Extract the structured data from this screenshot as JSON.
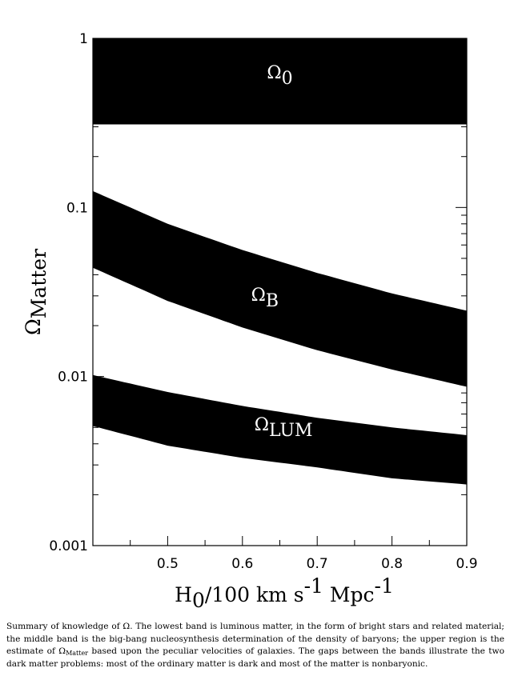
{
  "chart_data": {
    "type": "area",
    "title": "",
    "xlabel": {
      "main": "H",
      "sub": "0",
      "rest": "/100 km s",
      "sup1": "-1",
      "mid": " Mpc",
      "sup2": "-1"
    },
    "ylabel": {
      "main": "Ω",
      "sub": "Matter"
    },
    "xlim": [
      0.4,
      0.9
    ],
    "ylim": [
      0.001,
      1
    ],
    "yscale": "log",
    "grid": false,
    "x_ticks": [
      {
        "value": 0.5,
        "label": "0.5"
      },
      {
        "value": 0.6,
        "label": "0.6"
      },
      {
        "value": 0.7,
        "label": "0.7"
      },
      {
        "value": 0.8,
        "label": "0.8"
      },
      {
        "value": 0.9,
        "label": "0.9"
      }
    ],
    "y_ticks": [
      {
        "value": 0.001,
        "label": "0.001"
      },
      {
        "value": 0.01,
        "label": "0.01"
      },
      {
        "value": 0.1,
        "label": "0.1"
      },
      {
        "value": 1,
        "label": "1"
      }
    ],
    "bands": [
      {
        "id": "omega-0",
        "label": "Ω",
        "label_sub": "0",
        "label_at": {
          "x": 0.65,
          "y": 0.58
        },
        "x": [
          0.4,
          0.9
        ],
        "lower": [
          0.31,
          0.31
        ],
        "upper": [
          1.0,
          1.0
        ]
      },
      {
        "id": "omega-b",
        "label": "Ω",
        "label_sub": "B",
        "label_at": {
          "x": 0.63,
          "y": 0.028
        },
        "x": [
          0.4,
          0.5,
          0.6,
          0.7,
          0.8,
          0.9
        ],
        "lower": [
          0.044,
          0.028,
          0.0195,
          0.0143,
          0.011,
          0.0087
        ],
        "upper": [
          0.125,
          0.08,
          0.056,
          0.041,
          0.031,
          0.0245
        ]
      },
      {
        "id": "omega-lum",
        "label": "Ω",
        "label_sub": "LUM",
        "label_at": {
          "x": 0.655,
          "y": 0.0048
        },
        "x": [
          0.4,
          0.5,
          0.6,
          0.7,
          0.8,
          0.9
        ],
        "lower": [
          0.0051,
          0.0039,
          0.0033,
          0.0029,
          0.0025,
          0.0023
        ],
        "upper": [
          0.0102,
          0.0081,
          0.0067,
          0.0057,
          0.005,
          0.0045
        ]
      }
    ]
  },
  "caption": {
    "p1": "Summary of knowledge of Ω.  The lowest band is luminous matter, in the form of bright stars and related material; the middle band is the big-bang nucleosynthesis determination of the density of baryons; the upper region is the estimate of Ω",
    "p1_sub": "Matter",
    "p2": " based upon the peculiar velocities of galaxies.  The gaps between the bands illustrate the two dark matter problems: most of the ordinary matter is dark and most of the matter is nonbaryonic."
  }
}
